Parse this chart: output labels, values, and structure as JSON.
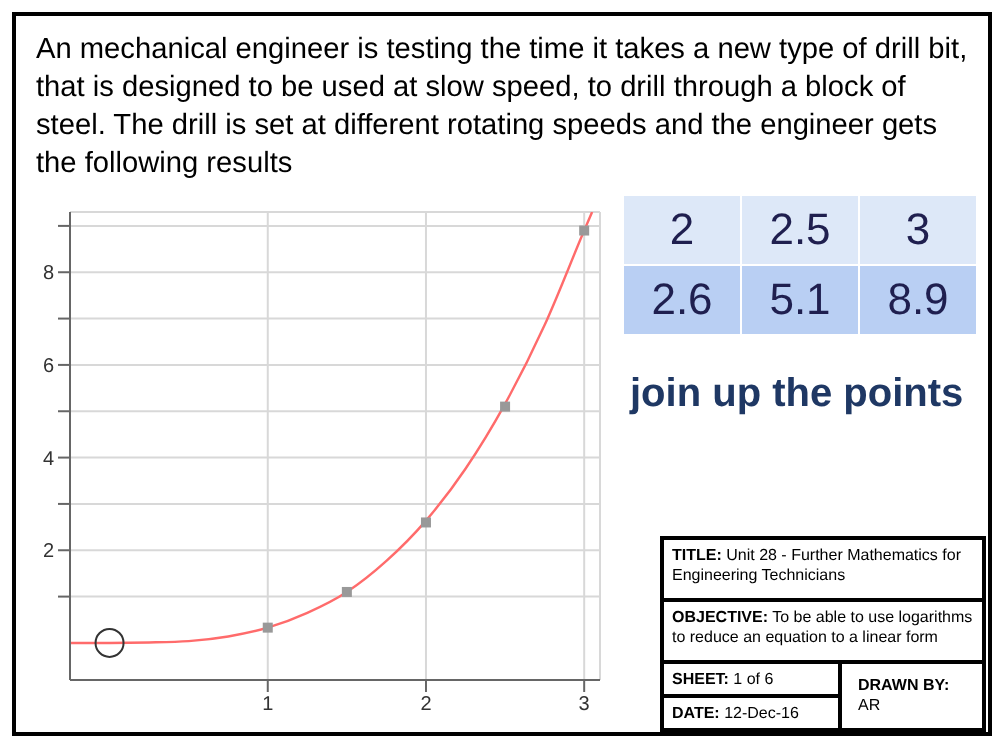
{
  "chart_data": {
    "type": "scatter",
    "title": "An mechanical engineer is testing the time it takes a new type of drill bit, that is designed to be used at slow speed, to drill through a block of steel. The drill is set at different rotating speeds and the engineer gets the following results",
    "xlim": [
      -0.25,
      3.1
    ],
    "ylim": [
      -0.8,
      9.3
    ],
    "xticks": [
      1,
      2,
      3
    ],
    "yticks": [
      {
        "value": 1,
        "label": null
      },
      2,
      {
        "value": 3,
        "label": null
      },
      4,
      {
        "value": 5,
        "label": null
      },
      6,
      {
        "value": 7,
        "label": null
      },
      8,
      {
        "value": 9,
        "label": null
      }
    ],
    "grid": true,
    "series": [
      {
        "type": "line",
        "color": "#ff6b6b",
        "marker": "none",
        "line_style": "solid",
        "x": [
          -0.25,
          0,
          0.25,
          0.5,
          0.75,
          1,
          1.25,
          1.5,
          1.75,
          2,
          2.25,
          2.5,
          2.75,
          3,
          3.05
        ],
        "values": [
          0,
          0,
          0.01,
          0.04,
          0.14,
          0.33,
          0.65,
          1.1,
          1.77,
          2.64,
          3.76,
          5.16,
          6.86,
          8.9,
          9.3
        ]
      },
      {
        "color": "#999999",
        "marker": "square",
        "x": [
          1,
          1.5,
          2,
          2.5,
          3
        ],
        "values": [
          0.33,
          1.1,
          2.6,
          5.1,
          8.9
        ]
      },
      {
        "color": "#333333",
        "marker": "circle",
        "x": [
          0
        ],
        "values": [
          0
        ]
      }
    ],
    "annotations": [
      "join up the points",
      "TITLE: Unit 28 - Further Mathematics for Engineering Technicians",
      "OBJECTIVE: To be able to use logarithms to reduce an equation to a linear form",
      "SHEET: 1 of 6",
      "DATE: 12-Dec-16",
      "DRAWN BY:",
      "AR",
      "2",
      "2.5",
      "3",
      "2.6",
      "5.1",
      "8.9"
    ]
  }
}
